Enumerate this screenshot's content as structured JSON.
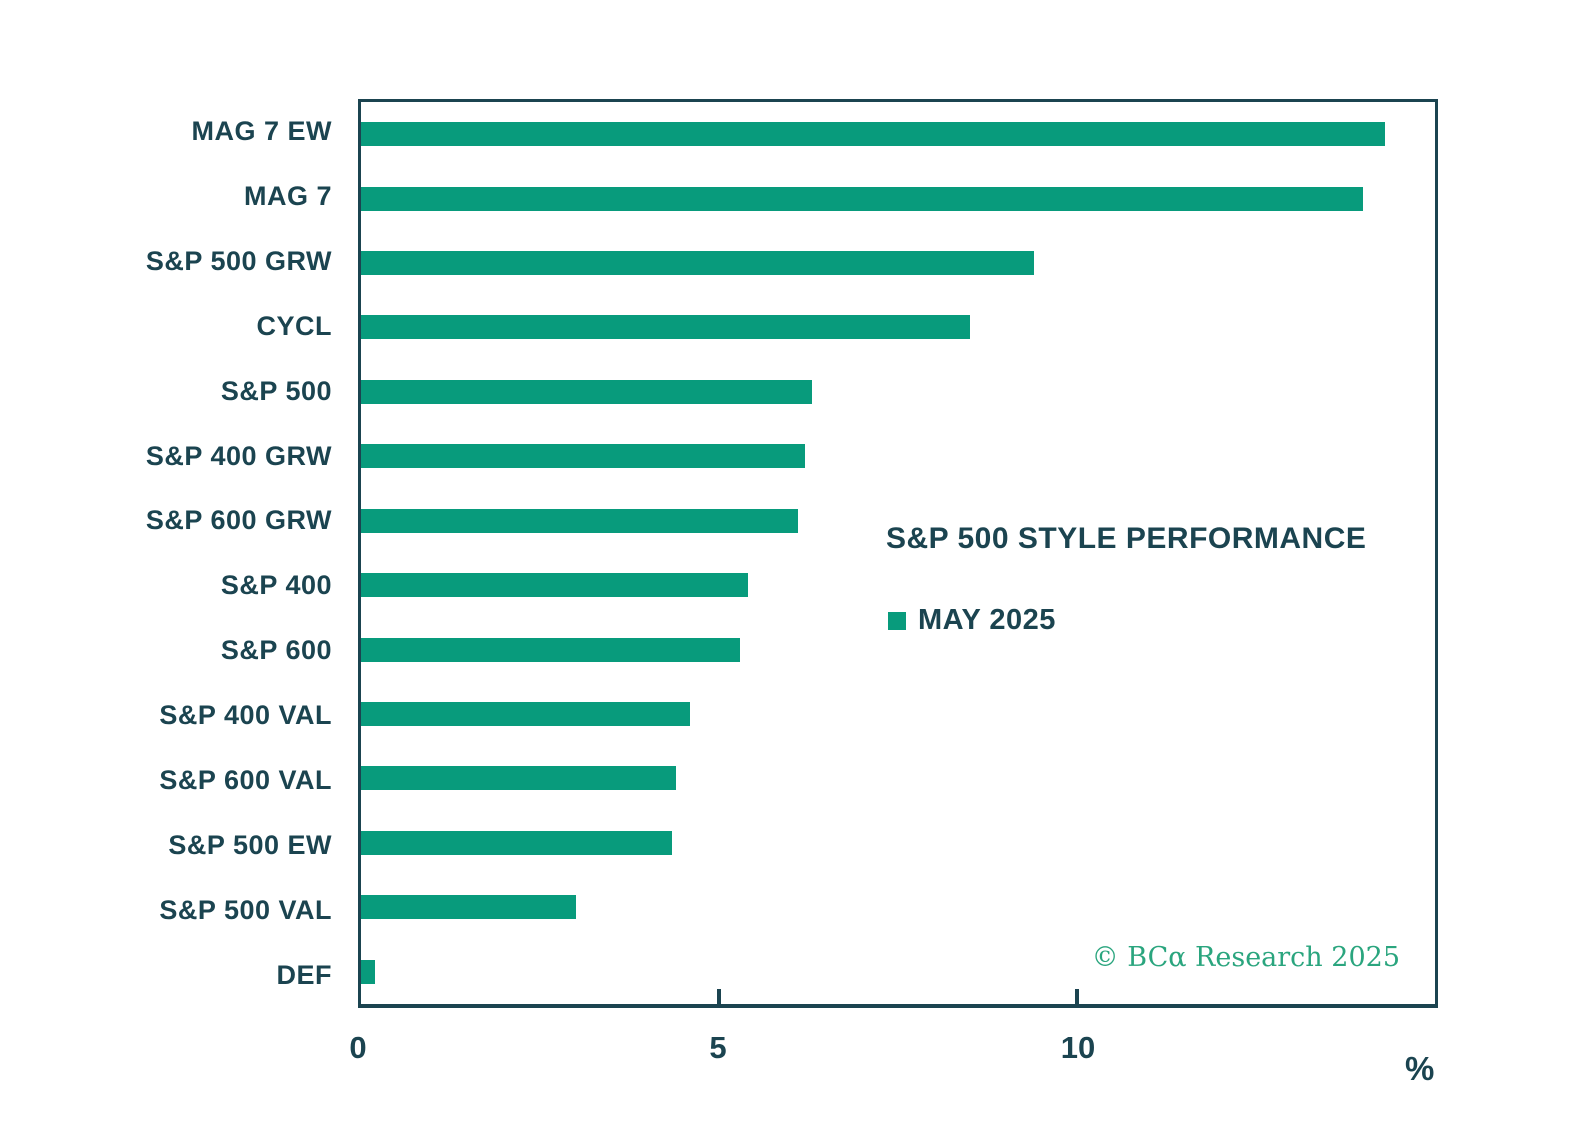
{
  "chart_data": {
    "type": "bar",
    "orientation": "horizontal",
    "title": "S&P 500 STYLE PERFORMANCE",
    "legend": [
      {
        "label": "MAY 2025",
        "color": "#089b7c"
      }
    ],
    "legend_position": "inside-center-right",
    "categories": [
      "MAG 7 EW",
      "MAG 7",
      "S&P 500 GRW",
      "CYCL",
      "S&P 500",
      "S&P 400 GRW",
      "S&P 600 GRW",
      "S&P 400",
      "S&P 600",
      "S&P 400 VAL",
      "S&P 600 VAL",
      "S&P 500 EW",
      "S&P 500 VAL",
      "DEF"
    ],
    "values": [
      14.3,
      14.0,
      9.4,
      8.5,
      6.3,
      6.2,
      6.1,
      5.4,
      5.3,
      4.6,
      4.4,
      4.35,
      3.0,
      0.2
    ],
    "xlim": [
      0,
      15
    ],
    "xticks": [
      0,
      5,
      10
    ],
    "xlabel": "%",
    "bar_color": "#089b7c",
    "grid": false
  },
  "footer": {
    "copyright": "© BCα Research 2025"
  },
  "colors": {
    "bar": "#089b7c",
    "text_dark": "#1b4450",
    "source_green": "#2aa57e",
    "background": "#ffffff"
  }
}
